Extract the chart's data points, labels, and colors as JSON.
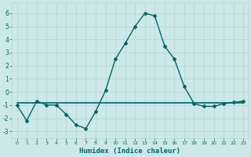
{
  "x": [
    0,
    1,
    2,
    3,
    4,
    5,
    6,
    7,
    8,
    9,
    10,
    11,
    12,
    13,
    14,
    15,
    16,
    17,
    18,
    19,
    20,
    21,
    22,
    23
  ],
  "y_curve": [
    -1.0,
    -2.2,
    -0.7,
    -1.0,
    -1.0,
    -1.7,
    -2.5,
    -2.8,
    -1.5,
    0.1,
    2.5,
    3.7,
    5.0,
    6.0,
    5.8,
    3.5,
    2.5,
    0.4,
    -0.9,
    -1.1,
    -1.1,
    -0.9,
    -0.8,
    -0.7
  ],
  "y_flat": [
    -0.85,
    -0.85,
    -0.85,
    -0.85,
    -0.85,
    -0.85,
    -0.85,
    -0.85,
    -0.85,
    -0.85,
    -0.85,
    -0.85,
    -0.85,
    -0.85,
    -0.85,
    -0.85,
    -0.85,
    -0.85,
    -0.85,
    -0.85,
    -0.85,
    -0.85,
    -0.85,
    -0.85
  ],
  "line_color": "#006666",
  "bg_color": "#cce8e8",
  "grid_color": "#b8d8d8",
  "xlabel": "Humidex (Indice chaleur)",
  "ylim": [
    -3.5,
    6.8
  ],
  "xlim": [
    -0.5,
    23.5
  ],
  "yticks": [
    -3,
    -2,
    -1,
    0,
    1,
    2,
    3,
    4,
    5,
    6
  ],
  "xtick_labels": [
    "0",
    "1",
    "2",
    "3",
    "4",
    "5",
    "6",
    "7",
    "8",
    "9",
    "10",
    "11",
    "12",
    "13",
    "14",
    "15",
    "16",
    "17",
    "18",
    "19",
    "20",
    "21",
    "22",
    "23"
  ],
  "marker": "D",
  "markersize": 2.0,
  "linewidth": 1.0
}
